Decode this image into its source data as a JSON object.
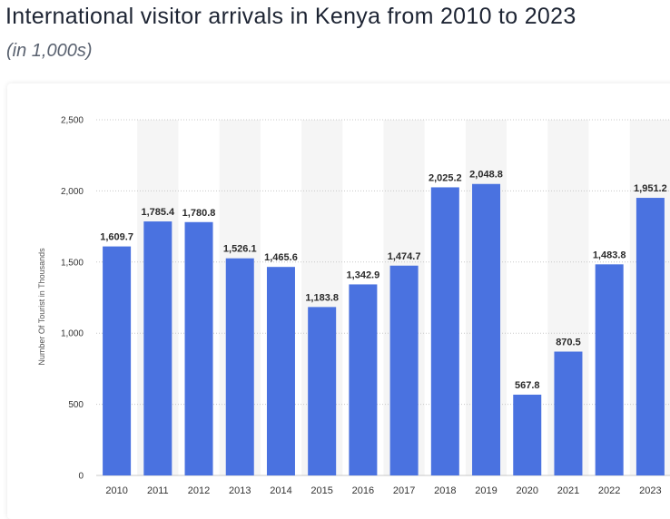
{
  "header": {
    "title": "International visitor arrivals in Kenya from 2010 to 2023",
    "subtitle": "(in 1,000s)"
  },
  "chart_data": {
    "type": "bar",
    "title": "International visitor arrivals in Kenya from 2010 to 2023",
    "subtitle": "(in 1,000s)",
    "xlabel": "",
    "ylabel": "Number Of Tourist in Thousands",
    "categories": [
      "2010",
      "2011",
      "2012",
      "2013",
      "2014",
      "2015",
      "2016",
      "2017",
      "2018",
      "2019",
      "2020",
      "2021",
      "2022",
      "2023"
    ],
    "values": [
      1609.7,
      1785.4,
      1780.8,
      1526.1,
      1465.6,
      1183.8,
      1342.9,
      1474.7,
      2025.2,
      2048.8,
      567.8,
      870.5,
      1483.8,
      1951.2
    ],
    "value_labels": [
      "1,609.7",
      "1,785.4",
      "1,780.8",
      "1,526.1",
      "1,465.6",
      "1,183.8",
      "1,342.9",
      "1,474.7",
      "2,025.2",
      "2,048.8",
      "567.8",
      "870.5",
      "1,483.8",
      "1,951.2"
    ],
    "ylim": [
      0,
      2500
    ],
    "yticks": [
      0,
      500,
      1000,
      1500,
      2000,
      2500
    ],
    "ytick_labels": [
      "0",
      "500",
      "1,000",
      "1,500",
      "2,000",
      "2,500"
    ],
    "grid": true,
    "legend": "none",
    "colors": {
      "bar": "#4a72e0",
      "band": "#f5f5f5",
      "grid": "#c8c8c8"
    }
  }
}
